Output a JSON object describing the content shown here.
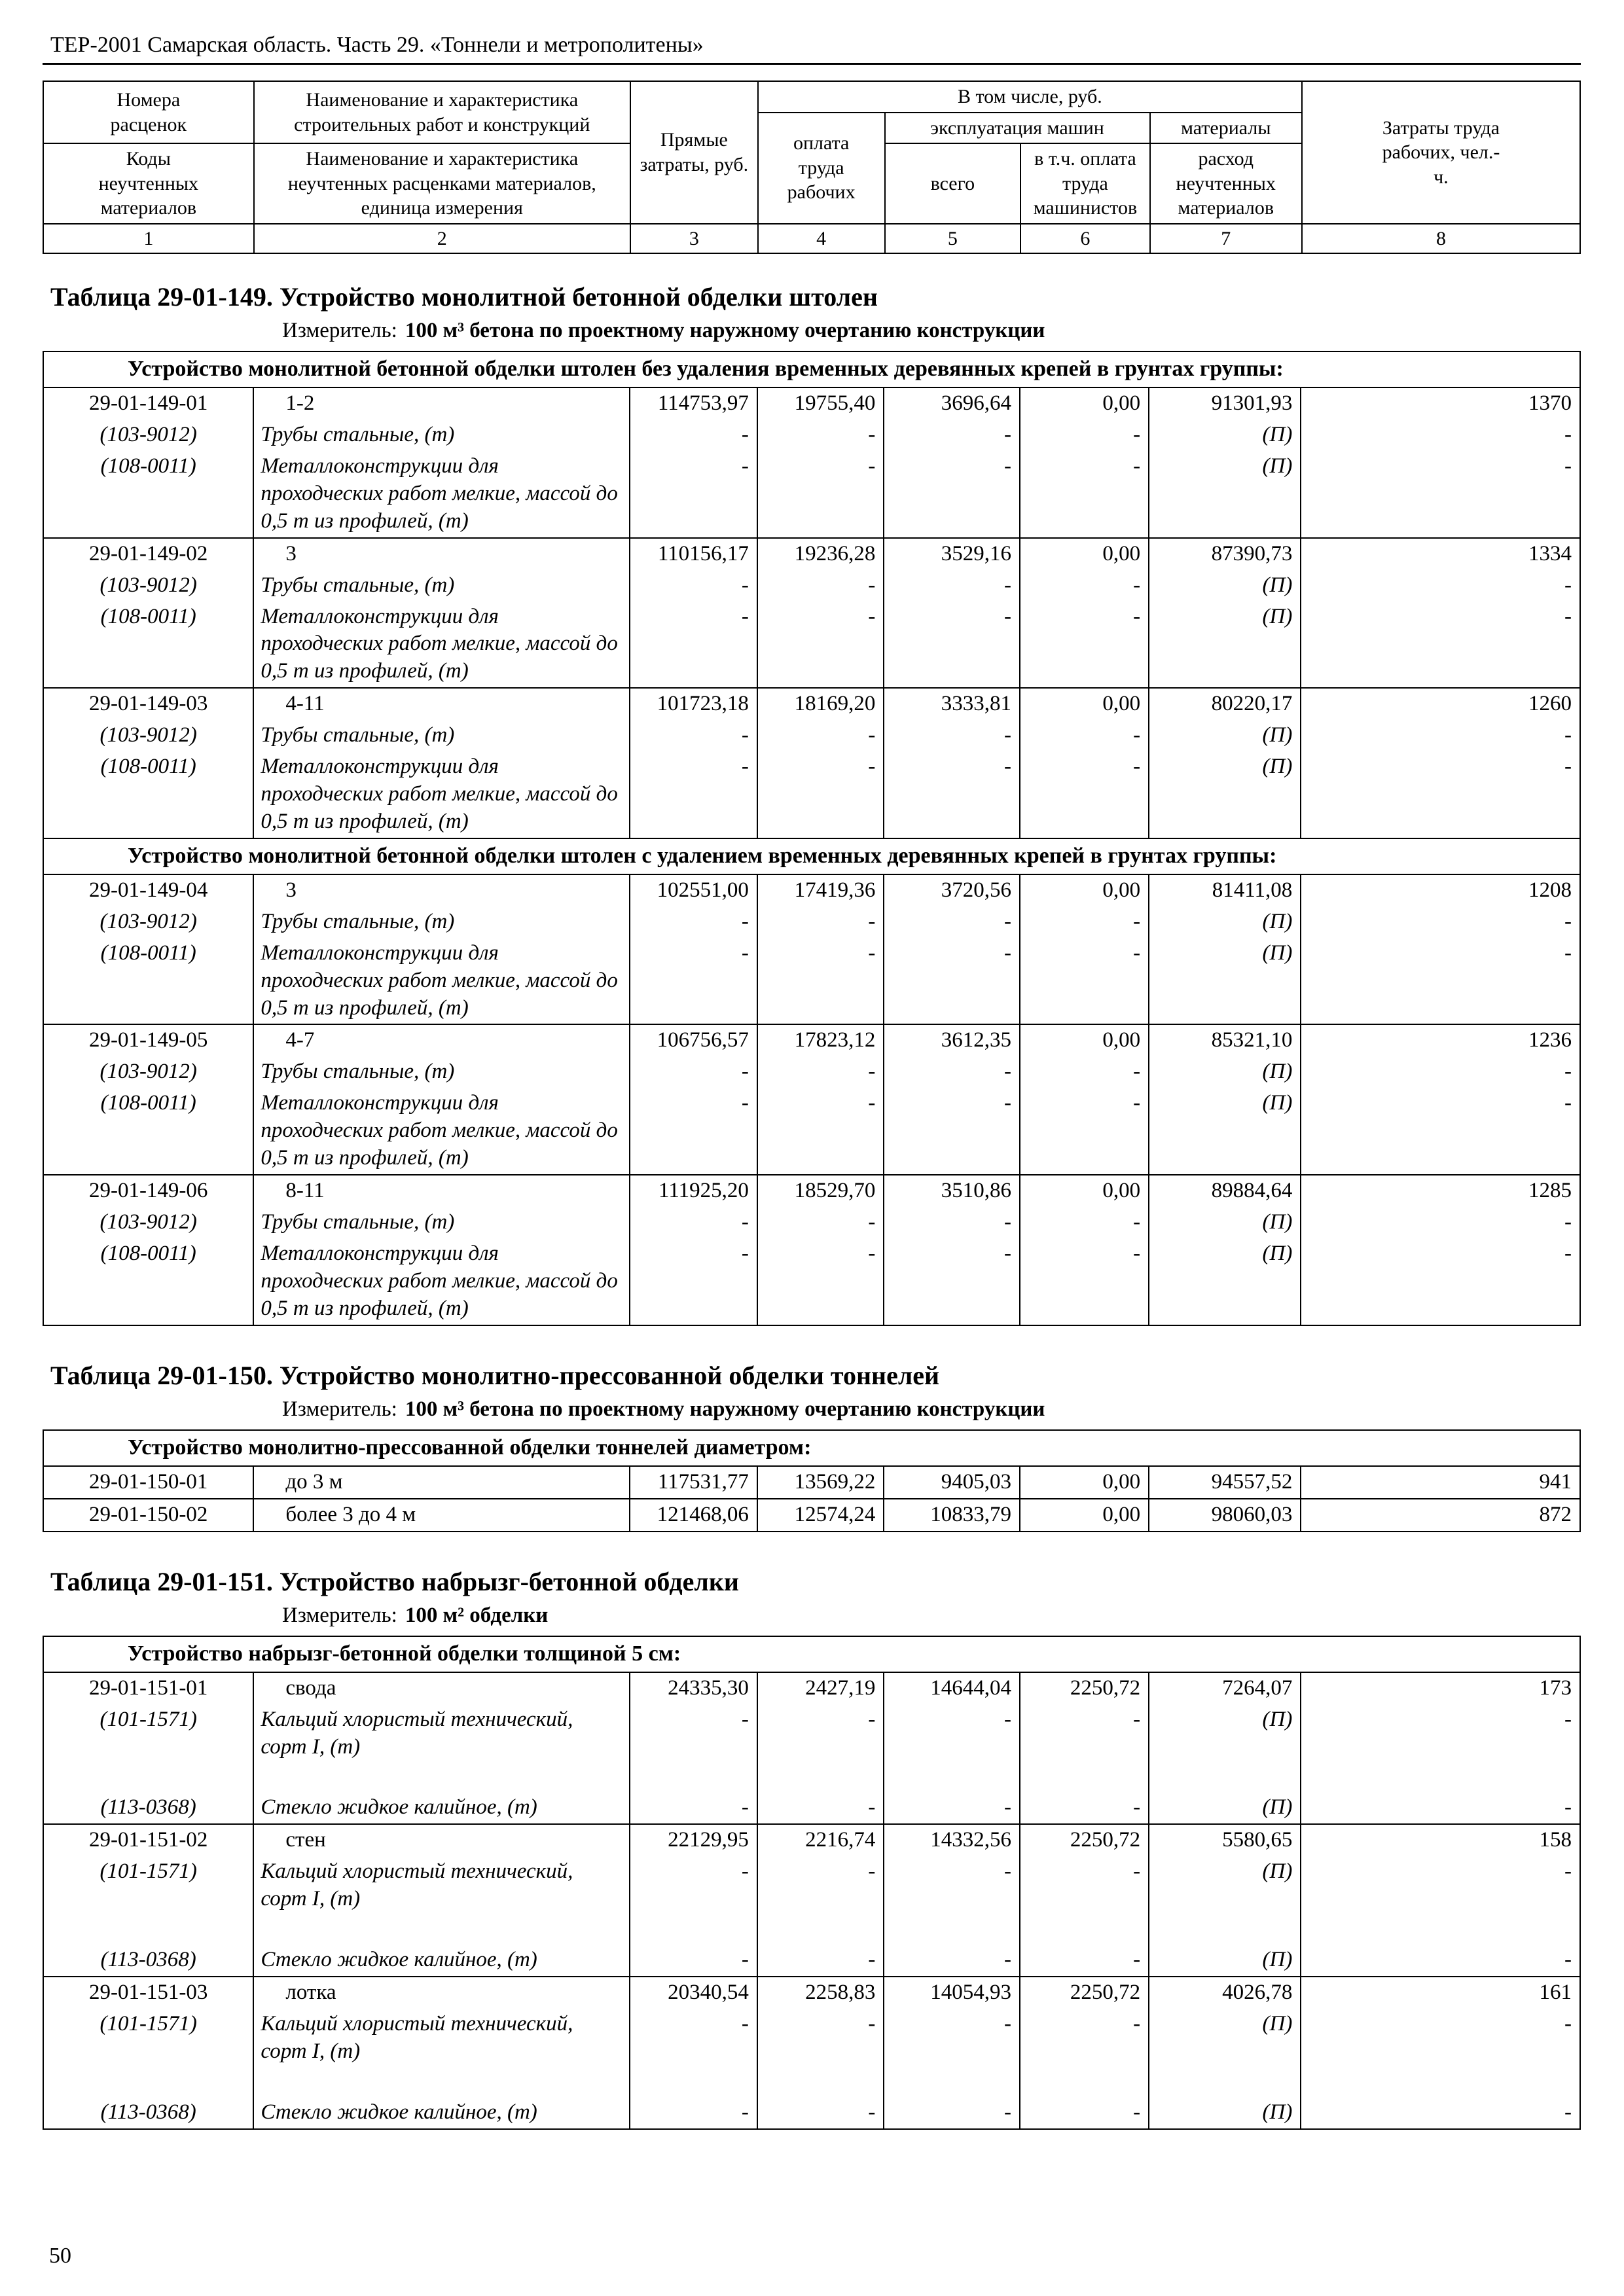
{
  "page": {
    "doc_header": "ТЕР-2001 Самарская область. Часть 29. «Тоннели и метрополитены»",
    "page_number": "50"
  },
  "table_header": {
    "rates_numbers": "Номера расценок",
    "works_name": "Наименование и характеристика строительных работ и конструкций",
    "material_codes": "Коды неучтенных материалов",
    "materials_name": "Наименование и характеристика неучтенных расценками материалов, единица измерения",
    "direct_costs": "Прямые затраты, руб.",
    "including": "В том числе, руб.",
    "labor_pay": "оплата труда рабочих",
    "machines": "эксплуатация машин",
    "machines_total": "всего",
    "machinists_pay": "в т.ч. оплата труда машинистов",
    "materials_group": "материалы",
    "materials_consumption": "расход неучтенных материалов",
    "labor_costs": "Затраты труда рабочих, чел.-ч.",
    "column_numbers": [
      "1",
      "2",
      "3",
      "4",
      "5",
      "6",
      "7",
      "8"
    ]
  },
  "measure_label": "Измеритель:",
  "tables": [
    {
      "title": "Таблица 29-01-149. Устройство монолитной бетонной обделки штолен",
      "measure": "100 м³ бетона по проектному наружному очертанию конструкции",
      "sections": [
        {
          "heading": "Устройство монолитной бетонной обделки штолен без удаления временных деревянных крепей в грунтах группы:",
          "rows": [
            {
              "code": "29-01-149-01",
              "name": "1-2",
              "values": [
                "114753,97",
                "19755,40",
                "3696,64",
                "0,00",
                "91301,93",
                "1370"
              ],
              "materials": [
                {
                  "code": "(103-9012)",
                  "name": "Трубы стальные, (т)",
                  "values": [
                    "-",
                    "-",
                    "-",
                    "-",
                    "(П)",
                    "-"
                  ]
                },
                {
                  "code": "(108-0011)",
                  "name": "Металлоконструкции для проходческих работ мелкие, массой до 0,5 т из профилей, (т)",
                  "values": [
                    "-",
                    "-",
                    "-",
                    "-",
                    "(П)",
                    "-"
                  ]
                }
              ]
            },
            {
              "code": "29-01-149-02",
              "name": "3",
              "values": [
                "110156,17",
                "19236,28",
                "3529,16",
                "0,00",
                "87390,73",
                "1334"
              ],
              "materials": [
                {
                  "code": "(103-9012)",
                  "name": "Трубы стальные, (т)",
                  "values": [
                    "-",
                    "-",
                    "-",
                    "-",
                    "(П)",
                    "-"
                  ]
                },
                {
                  "code": "(108-0011)",
                  "name": "Металлоконструкции для проходческих работ мелкие, массой до 0,5 т из профилей, (т)",
                  "values": [
                    "-",
                    "-",
                    "-",
                    "-",
                    "(П)",
                    "-"
                  ]
                }
              ]
            },
            {
              "code": "29-01-149-03",
              "name": "4-11",
              "values": [
                "101723,18",
                "18169,20",
                "3333,81",
                "0,00",
                "80220,17",
                "1260"
              ],
              "materials": [
                {
                  "code": "(103-9012)",
                  "name": "Трубы стальные, (т)",
                  "values": [
                    "-",
                    "-",
                    "-",
                    "-",
                    "(П)",
                    "-"
                  ]
                },
                {
                  "code": "(108-0011)",
                  "name": "Металлоконструкции для проходческих работ мелкие, массой до 0,5 т из профилей, (т)",
                  "values": [
                    "-",
                    "-",
                    "-",
                    "-",
                    "(П)",
                    "-"
                  ]
                }
              ]
            }
          ]
        },
        {
          "heading": "Устройство монолитной бетонной обделки штолен с удалением временных деревянных крепей в грунтах группы:",
          "rows": [
            {
              "code": "29-01-149-04",
              "name": "3",
              "values": [
                "102551,00",
                "17419,36",
                "3720,56",
                "0,00",
                "81411,08",
                "1208"
              ],
              "materials": [
                {
                  "code": "(103-9012)",
                  "name": "Трубы стальные, (т)",
                  "values": [
                    "-",
                    "-",
                    "-",
                    "-",
                    "(П)",
                    "-"
                  ]
                },
                {
                  "code": "(108-0011)",
                  "name": "Металлоконструкции для проходческих работ мелкие, массой до 0,5 т из профилей, (т)",
                  "values": [
                    "-",
                    "-",
                    "-",
                    "-",
                    "(П)",
                    "-"
                  ]
                }
              ]
            },
            {
              "code": "29-01-149-05",
              "name": "4-7",
              "values": [
                "106756,57",
                "17823,12",
                "3612,35",
                "0,00",
                "85321,10",
                "1236"
              ],
              "materials": [
                {
                  "code": "(103-9012)",
                  "name": "Трубы стальные, (т)",
                  "values": [
                    "-",
                    "-",
                    "-",
                    "-",
                    "(П)",
                    "-"
                  ]
                },
                {
                  "code": "(108-0011)",
                  "name": "Металлоконструкции для проходческих работ мелкие, массой до 0,5 т из профилей, (т)",
                  "values": [
                    "-",
                    "-",
                    "-",
                    "-",
                    "(П)",
                    "-"
                  ]
                }
              ]
            },
            {
              "code": "29-01-149-06",
              "name": "8-11",
              "values": [
                "111925,20",
                "18529,70",
                "3510,86",
                "0,00",
                "89884,64",
                "1285"
              ],
              "materials": [
                {
                  "code": "(103-9012)",
                  "name": "Трубы стальные, (т)",
                  "values": [
                    "-",
                    "-",
                    "-",
                    "-",
                    "(П)",
                    "-"
                  ]
                },
                {
                  "code": "(108-0011)",
                  "name": "Металлоконструкции для проходческих работ мелкие, массой до 0,5 т из профилей, (т)",
                  "values": [
                    "-",
                    "-",
                    "-",
                    "-",
                    "(П)",
                    "-"
                  ]
                }
              ]
            }
          ]
        }
      ]
    },
    {
      "title": "Таблица 29-01-150. Устройство монолитно-прессованной обделки тоннелей",
      "measure": "100 м³ бетона по проектному наружному очертанию конструкции",
      "sections": [
        {
          "heading": "Устройство монолитно-прессованной обделки тоннелей диаметром:",
          "rows": [
            {
              "code": "29-01-150-01",
              "name": "до 3 м",
              "values": [
                "117531,77",
                "13569,22",
                "9405,03",
                "0,00",
                "94557,52",
                "941"
              ],
              "materials": []
            },
            {
              "code": "29-01-150-02",
              "name": "более 3 до 4 м",
              "values": [
                "121468,06",
                "12574,24",
                "10833,79",
                "0,00",
                "98060,03",
                "872"
              ],
              "materials": []
            }
          ]
        }
      ]
    },
    {
      "title": "Таблица 29-01-151. Устройство набрызг-бетонной обделки",
      "measure": "100 м² обделки",
      "sections": [
        {
          "heading": "Устройство набрызг-бетонной обделки толщиной 5 см:",
          "rows": [
            {
              "code": "29-01-151-01",
              "name": "свода",
              "values": [
                "24335,30",
                "2427,19",
                "14644,04",
                "2250,72",
                "7264,07",
                "173"
              ],
              "materials": [
                {
                  "code": "(101-1571)",
                  "name": "Кальций хлористый технический, сорт I, (т)",
                  "values": [
                    "-",
                    "-",
                    "-",
                    "-",
                    "(П)",
                    "-"
                  ]
                },
                {
                  "code": "(113-0368)",
                  "name": "Стекло жидкое калийное, (т)",
                  "values": [
                    "-",
                    "-",
                    "-",
                    "-",
                    "(П)",
                    "-"
                  ]
                }
              ]
            },
            {
              "code": "29-01-151-02",
              "name": "стен",
              "values": [
                "22129,95",
                "2216,74",
                "14332,56",
                "2250,72",
                "5580,65",
                "158"
              ],
              "materials": [
                {
                  "code": "(101-1571)",
                  "name": "Кальций хлористый технический, сорт I, (т)",
                  "values": [
                    "-",
                    "-",
                    "-",
                    "-",
                    "(П)",
                    "-"
                  ]
                },
                {
                  "code": "(113-0368)",
                  "name": "Стекло жидкое калийное, (т)",
                  "values": [
                    "-",
                    "-",
                    "-",
                    "-",
                    "(П)",
                    "-"
                  ]
                }
              ]
            },
            {
              "code": "29-01-151-03",
              "name": "лотка",
              "values": [
                "20340,54",
                "2258,83",
                "14054,93",
                "2250,72",
                "4026,78",
                "161"
              ],
              "materials": [
                {
                  "code": "(101-1571)",
                  "name": "Кальций хлористый технический, сорт I, (т)",
                  "values": [
                    "-",
                    "-",
                    "-",
                    "-",
                    "(П)",
                    "-"
                  ]
                },
                {
                  "code": "(113-0368)",
                  "name": "Стекло жидкое калийное, (т)",
                  "values": [
                    "-",
                    "-",
                    "-",
                    "-",
                    "(П)",
                    "-"
                  ]
                }
              ]
            }
          ]
        }
      ]
    }
  ]
}
